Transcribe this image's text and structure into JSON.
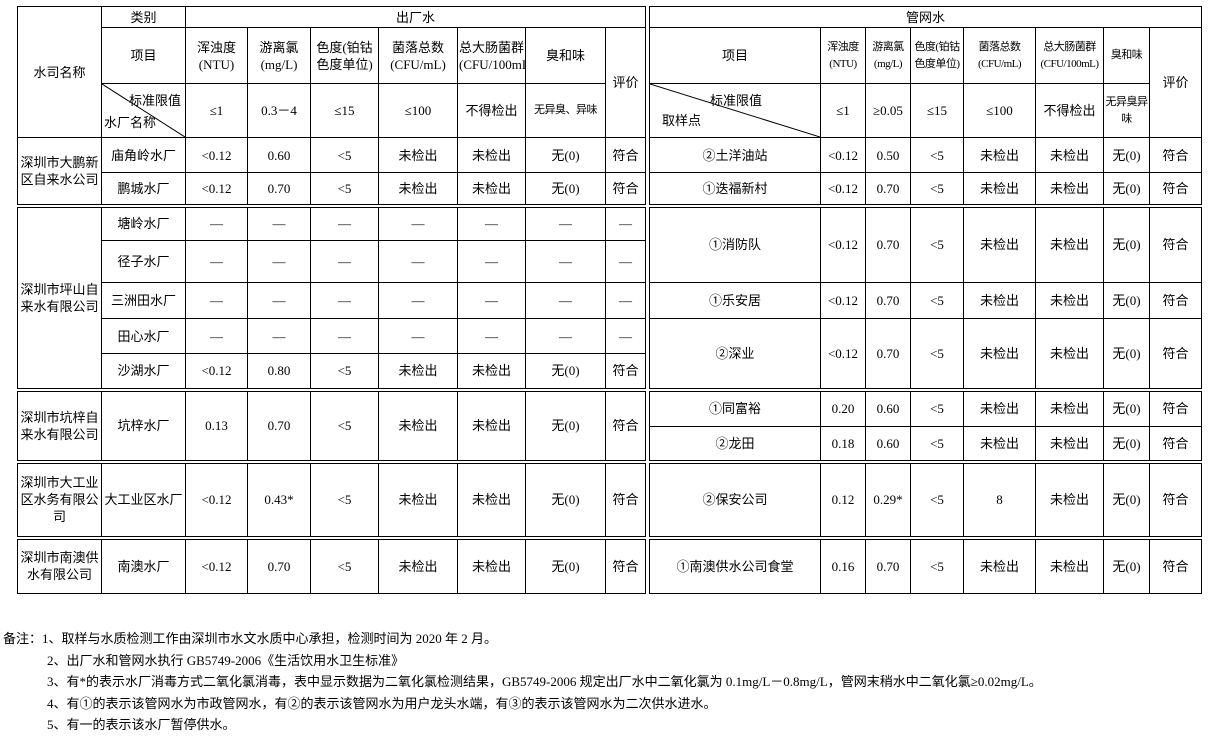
{
  "left": {
    "company_header": "水司名称",
    "category": "类别",
    "section": "出厂水",
    "item": "项目",
    "evaluation": "评价",
    "diag_top": "标准限值",
    "diag_bottom": "水厂名称",
    "params": [
      "浑浊度(NTU)",
      "游离氯(mg/L)",
      "色度(铂钴色度单位)",
      "菌落总数(CFU/mL)",
      "总大肠菌群(CFU/100mL)",
      "臭和味"
    ],
    "limits": [
      "≤1",
      "0.3－4",
      "≤15",
      "≤100",
      "不得检出",
      "无异臭、异味"
    ],
    "groups": [
      {
        "company": "深圳市大鹏新区自来水公司",
        "plants": [
          {
            "name": "庙角岭水厂",
            "values": [
              "<0.12",
              "0.60",
              "<5",
              "未检出",
              "未检出",
              "无(0)",
              "符合"
            ]
          },
          {
            "name": "鹏城水厂",
            "values": [
              "<0.12",
              "0.70",
              "<5",
              "未检出",
              "未检出",
              "无(0)",
              "符合"
            ]
          }
        ]
      },
      {
        "company": "深圳市坪山自来水有限公司",
        "plants": [
          {
            "name": "塘岭水厂",
            "values": [
              "—",
              "—",
              "—",
              "—",
              "—",
              "—",
              "—"
            ]
          },
          {
            "name": "径子水厂",
            "values": [
              "—",
              "—",
              "—",
              "—",
              "—",
              "—",
              "—"
            ]
          },
          {
            "name": "三洲田水厂",
            "values": [
              "—",
              "—",
              "—",
              "—",
              "—",
              "—",
              "—"
            ]
          },
          {
            "name": "田心水厂",
            "values": [
              "—",
              "—",
              "—",
              "—",
              "—",
              "—",
              "—"
            ]
          },
          {
            "name": "沙湖水厂",
            "values": [
              "<0.12",
              "0.80",
              "<5",
              "未检出",
              "未检出",
              "无(0)",
              "符合"
            ]
          }
        ]
      },
      {
        "company": "深圳市坑梓自来水有限公司",
        "plants": [
          {
            "name": "坑梓水厂",
            "values": [
              "0.13",
              "0.70",
              "<5",
              "未检出",
              "未检出",
              "无(0)",
              "符合"
            ]
          }
        ]
      },
      {
        "company": "深圳市大工业区水务有限公司",
        "plants": [
          {
            "name": "大工业区水厂",
            "values": [
              "<0.12",
              "0.43*",
              "<5",
              "未检出",
              "未检出",
              "无(0)",
              "符合"
            ]
          }
        ]
      },
      {
        "company": "深圳市南澳供水有限公司",
        "plants": [
          {
            "name": "南澳水厂",
            "values": [
              "<0.12",
              "0.70",
              "<5",
              "未检出",
              "未检出",
              "无(0)",
              "符合"
            ]
          }
        ]
      }
    ]
  },
  "right": {
    "section": "管网水",
    "item": "项目",
    "evaluation": "评价",
    "diag_top": "标准限值",
    "diag_bottom": "取样点",
    "params": [
      "浑浊度(NTU)",
      "游离氯(mg/L)",
      "色度(铂钴色度单位)",
      "菌落总数(CFU/mL)",
      "总大肠菌群(CFU/100mL)",
      "臭和味"
    ],
    "limits": [
      "≤1",
      "≥0.05",
      "≤15",
      "≤100",
      "不得检出",
      "无异臭异味"
    ],
    "groups": [
      {
        "points": [
          {
            "name": "②土洋油站",
            "rowspan": 1,
            "values": [
              "<0.12",
              "0.50",
              "<5",
              "未检出",
              "未检出",
              "无(0)",
              "符合"
            ]
          },
          {
            "name": "①迭福新村",
            "rowspan": 1,
            "values": [
              "<0.12",
              "0.70",
              "<5",
              "未检出",
              "未检出",
              "无(0)",
              "符合"
            ]
          }
        ]
      },
      {
        "points": [
          {
            "name": "①消防队",
            "rowspan": 2,
            "values": [
              "<0.12",
              "0.70",
              "<5",
              "未检出",
              "未检出",
              "无(0)",
              "符合"
            ]
          },
          {
            "name": "①乐安居",
            "rowspan": 1,
            "values": [
              "<0.12",
              "0.70",
              "<5",
              "未检出",
              "未检出",
              "无(0)",
              "符合"
            ]
          },
          {
            "name": "②深业",
            "rowspan": 2,
            "values": [
              "<0.12",
              "0.70",
              "<5",
              "未检出",
              "未检出",
              "无(0)",
              "符合"
            ]
          }
        ]
      },
      {
        "points": [
          {
            "name": "①同富裕",
            "rowspan": 1,
            "values": [
              "0.20",
              "0.60",
              "<5",
              "未检出",
              "未检出",
              "无(0)",
              "符合"
            ]
          },
          {
            "name": "②龙田",
            "rowspan": 1,
            "values": [
              "0.18",
              "0.60",
              "<5",
              "未检出",
              "未检出",
              "无(0)",
              "符合"
            ]
          }
        ]
      },
      {
        "points": [
          {
            "name": "②保安公司",
            "rowspan": 1,
            "values": [
              "0.12",
              "0.29*",
              "<5",
              "8",
              "未检出",
              "无(0)",
              "符合"
            ]
          }
        ]
      },
      {
        "points": [
          {
            "name": "①南澳供水公司食堂",
            "rowspan": 1,
            "values": [
              "0.16",
              "0.70",
              "<5",
              "未检出",
              "未检出",
              "无(0)",
              "符合"
            ]
          }
        ]
      }
    ]
  },
  "notes": [
    "备注：1、取样与水质检测工作由深圳市水文水质中心承担，检测时间为 2020 年 2 月。",
    "2、出厂水和管网水执行 GB5749-2006《生活饮用水卫生标准》",
    "3、有*的表示水厂消毒方式二氧化氯消毒，表中显示数据为二氧化氯检测结果，GB5749-2006 规定出厂水中二氧化氯为 0.1mg/L－0.8mg/L，管网末稍水中二氧化氯≥0.02mg/L。",
    "4、有①的表示该管网水为市政管网水，有②的表示该管网水为用户龙头水端，有③的表示该管网水为二次供水进水。",
    "5、有一的表示该水厂暂停供水。"
  ]
}
